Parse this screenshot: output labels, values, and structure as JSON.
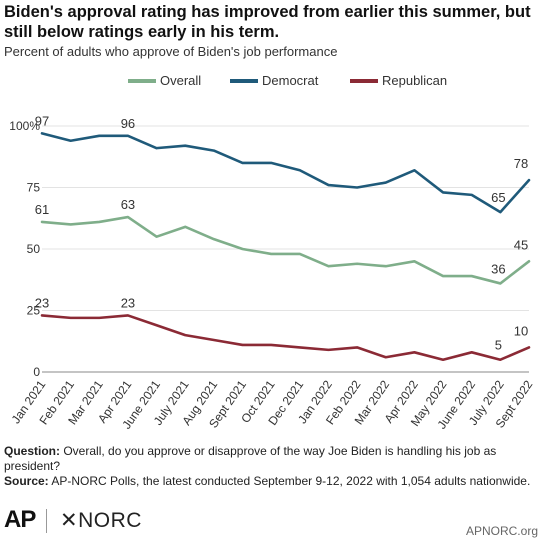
{
  "title": "Biden's approval rating has improved from earlier this summer, but still below ratings early in his term.",
  "subtitle": "Percent of adults who approve of Biden's job performance",
  "footer": {
    "question_label": "Question:",
    "question_text": "Overall, do you approve or disapprove of the way Joe Biden is handling his job as president?",
    "source_label": "Source:",
    "source_text": "AP-NORC Polls, the latest conducted September 9-12, 2022 with 1,054 adults nationwide."
  },
  "logos": {
    "ap": "AP",
    "norc": "NORC"
  },
  "site": "APNORC.org",
  "chart_data": {
    "type": "line",
    "categories": [
      "Jan 2021",
      "Feb 2021",
      "Mar 2021",
      "Apr 2021",
      "June 2021",
      "July 2021",
      "Aug 2021",
      "Sept 2021",
      "Oct 2021",
      "Dec 2021",
      "Jan 2022",
      "Feb 2022",
      "Mar 2022",
      "Apr 2022",
      "May 2022",
      "June 2022",
      "July 2022",
      "Sept 2022"
    ],
    "ylim": [
      0,
      100
    ],
    "yticks": [
      0,
      25,
      50,
      75,
      100
    ],
    "ytick_labels": [
      "0",
      "25",
      "50",
      "75",
      "100%"
    ],
    "grid": true,
    "legend_position": "top",
    "series": [
      {
        "name": "Overall",
        "color": "#7fae8a",
        "values": [
          61,
          60,
          61,
          63,
          55,
          59,
          54,
          50,
          48,
          48,
          43,
          44,
          43,
          45,
          39,
          39,
          36,
          45
        ],
        "labels": {
          "0": "61",
          "3": "63",
          "16": "36",
          "17": "45"
        }
      },
      {
        "name": "Democrat",
        "color": "#1f5a7a",
        "values": [
          97,
          94,
          96,
          96,
          91,
          92,
          90,
          85,
          85,
          82,
          76,
          75,
          77,
          82,
          73,
          72,
          65,
          78
        ],
        "labels": {
          "0": "97",
          "3": "96",
          "16": "65",
          "17": "78"
        }
      },
      {
        "name": "Republican",
        "color": "#8b2a35",
        "values": [
          23,
          22,
          22,
          23,
          19,
          15,
          13,
          11,
          11,
          10,
          9,
          10,
          6,
          8,
          5,
          8,
          5,
          10
        ],
        "labels": {
          "0": "23",
          "3": "23",
          "16": "5",
          "17": "10"
        }
      }
    ]
  }
}
